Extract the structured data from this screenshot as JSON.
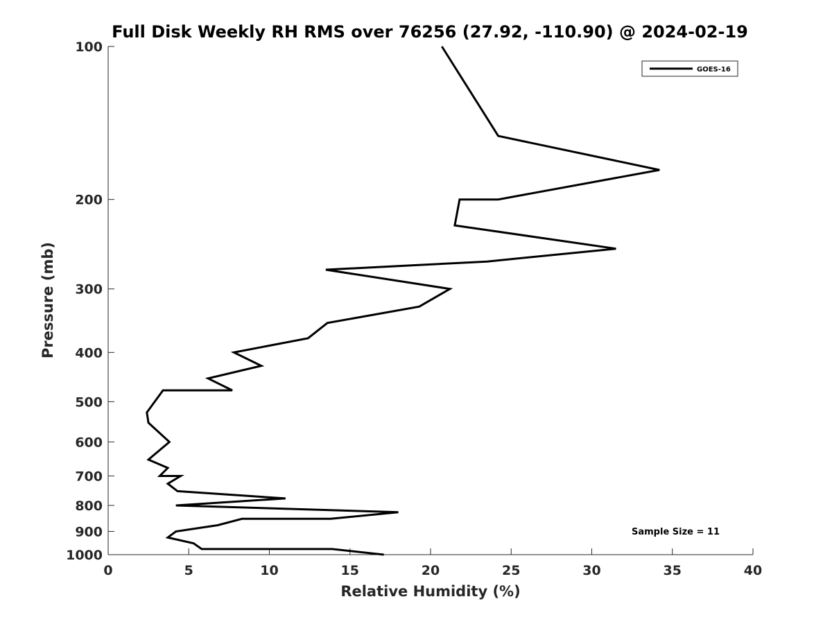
{
  "chart_data": {
    "type": "line",
    "title": "Full Disk Weekly RH RMS over 76256 (27.92, -110.90) @ 2024-02-19",
    "xlabel": "Relative Humidity (%)",
    "ylabel": "Pressure (mb)",
    "xlim": [
      0,
      40
    ],
    "ylim": [
      100,
      1000
    ],
    "y_scale": "log",
    "y_reversed": true,
    "x_ticks": [
      0,
      5,
      10,
      15,
      20,
      25,
      30,
      35,
      40
    ],
    "y_ticks": [
      100,
      200,
      300,
      400,
      500,
      600,
      700,
      800,
      900,
      1000
    ],
    "grid": false,
    "legend_position": "top-right",
    "series": [
      {
        "name": "GOES-16",
        "color": "#000000",
        "points": [
          {
            "x": 20.7,
            "y": 100
          },
          {
            "x": 24.2,
            "y": 150
          },
          {
            "x": 34.2,
            "y": 175
          },
          {
            "x": 24.2,
            "y": 200
          },
          {
            "x": 21.8,
            "y": 200
          },
          {
            "x": 21.5,
            "y": 225
          },
          {
            "x": 31.5,
            "y": 250
          },
          {
            "x": 23.5,
            "y": 265
          },
          {
            "x": 13.5,
            "y": 275
          },
          {
            "x": 21.2,
            "y": 300
          },
          {
            "x": 19.3,
            "y": 325
          },
          {
            "x": 13.6,
            "y": 350
          },
          {
            "x": 12.4,
            "y": 375
          },
          {
            "x": 7.8,
            "y": 400
          },
          {
            "x": 9.5,
            "y": 425
          },
          {
            "x": 6.2,
            "y": 450
          },
          {
            "x": 7.7,
            "y": 475
          },
          {
            "x": 3.4,
            "y": 475
          },
          {
            "x": 2.4,
            "y": 525
          },
          {
            "x": 2.5,
            "y": 550
          },
          {
            "x": 3.8,
            "y": 600
          },
          {
            "x": 2.5,
            "y": 650
          },
          {
            "x": 3.7,
            "y": 675
          },
          {
            "x": 3.2,
            "y": 700
          },
          {
            "x": 4.5,
            "y": 700
          },
          {
            "x": 3.7,
            "y": 725
          },
          {
            "x": 4.3,
            "y": 750
          },
          {
            "x": 11.0,
            "y": 775
          },
          {
            "x": 4.2,
            "y": 800
          },
          {
            "x": 18.0,
            "y": 825
          },
          {
            "x": 13.8,
            "y": 850
          },
          {
            "x": 8.3,
            "y": 850
          },
          {
            "x": 6.8,
            "y": 875
          },
          {
            "x": 4.2,
            "y": 900
          },
          {
            "x": 3.7,
            "y": 925
          },
          {
            "x": 5.3,
            "y": 950
          },
          {
            "x": 5.8,
            "y": 975
          },
          {
            "x": 13.9,
            "y": 975
          },
          {
            "x": 17.1,
            "y": 1000
          }
        ]
      }
    ],
    "annotations": [
      {
        "text": "Sample Size = 11"
      }
    ]
  }
}
